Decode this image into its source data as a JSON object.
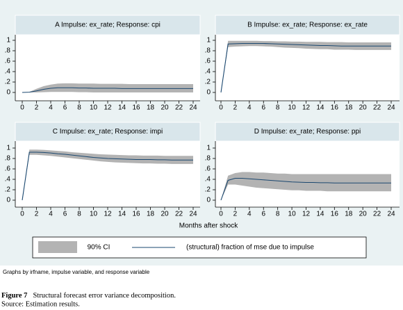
{
  "chart_data": [
    {
      "type": "line",
      "title": "A Impulse: ex_rate; Response: cpi",
      "x": [
        0,
        1,
        2,
        3,
        4,
        5,
        6,
        7,
        8,
        9,
        10,
        11,
        12,
        13,
        14,
        15,
        16,
        17,
        18,
        19,
        20,
        21,
        22,
        23,
        24
      ],
      "xlim": [
        0,
        24
      ],
      "xticks": [
        0,
        2,
        4,
        6,
        8,
        10,
        12,
        14,
        16,
        18,
        20,
        22,
        24
      ],
      "ylim": [
        0,
        1
      ],
      "yticks": [
        0,
        {
          "value": 0.2,
          "label": ".2"
        },
        {
          "value": 0.4,
          "label": ".4"
        },
        {
          "value": 0.6,
          "label": ".6"
        },
        {
          "value": 0.8,
          "label": ".8"
        },
        1
      ],
      "grid": false,
      "series": [
        {
          "name": "90% CI",
          "color": "#b3b3b3",
          "lower": [
            0,
            0,
            0,
            0.005,
            0.01,
            0.01,
            0.01,
            0.01,
            0.005,
            0.005,
            0,
            0,
            0,
            0,
            0,
            0,
            0,
            0,
            0,
            0,
            0,
            0,
            0,
            0,
            0
          ],
          "upper": [
            0,
            0.01,
            0.07,
            0.12,
            0.15,
            0.17,
            0.175,
            0.175,
            0.17,
            0.17,
            0.17,
            0.165,
            0.165,
            0.165,
            0.165,
            0.16,
            0.16,
            0.16,
            0.16,
            0.16,
            0.16,
            0.16,
            0.16,
            0.16,
            0.16
          ]
        },
        {
          "name": "(structural) fraction of mse due to impulse",
          "color": "#1a476f",
          "values": [
            0,
            0.005,
            0.03,
            0.06,
            0.08,
            0.09,
            0.09,
            0.09,
            0.085,
            0.085,
            0.08,
            0.08,
            0.08,
            0.08,
            0.075,
            0.075,
            0.075,
            0.075,
            0.075,
            0.075,
            0.075,
            0.075,
            0.075,
            0.075,
            0.075
          ]
        }
      ]
    },
    {
      "type": "line",
      "title": "B Impulse: ex_rate; Response: ex_rate",
      "x": [
        0,
        1,
        2,
        3,
        4,
        5,
        6,
        7,
        8,
        9,
        10,
        11,
        12,
        13,
        14,
        15,
        16,
        17,
        18,
        19,
        20,
        21,
        22,
        23,
        24
      ],
      "xlim": [
        0,
        24
      ],
      "xticks": [
        0,
        2,
        4,
        6,
        8,
        10,
        12,
        14,
        16,
        18,
        20,
        22,
        24
      ],
      "ylim": [
        0,
        1
      ],
      "yticks": [
        0,
        {
          "value": 0.2,
          "label": ".2"
        },
        {
          "value": 0.4,
          "label": ".4"
        },
        {
          "value": 0.6,
          "label": ".6"
        },
        {
          "value": 0.8,
          "label": ".8"
        },
        1
      ],
      "grid": false,
      "series": [
        {
          "color": "#b3b3b3",
          "lower": [
            0,
            0.87,
            0.88,
            0.885,
            0.89,
            0.89,
            0.885,
            0.88,
            0.87,
            0.86,
            0.855,
            0.85,
            0.84,
            0.835,
            0.83,
            0.83,
            0.82,
            0.82,
            0.82,
            0.815,
            0.815,
            0.815,
            0.815,
            0.815,
            0.815
          ],
          "upper": [
            0,
            0.99,
            0.99,
            0.99,
            0.99,
            0.99,
            0.985,
            0.985,
            0.98,
            0.98,
            0.975,
            0.975,
            0.97,
            0.97,
            0.97,
            0.965,
            0.965,
            0.965,
            0.96,
            0.96,
            0.96,
            0.96,
            0.96,
            0.96,
            0.96
          ]
        },
        {
          "color": "#1a476f",
          "values": [
            0,
            0.93,
            0.935,
            0.94,
            0.94,
            0.94,
            0.94,
            0.935,
            0.93,
            0.925,
            0.92,
            0.915,
            0.91,
            0.905,
            0.9,
            0.9,
            0.895,
            0.89,
            0.89,
            0.89,
            0.89,
            0.89,
            0.89,
            0.89,
            0.89
          ]
        }
      ]
    },
    {
      "type": "line",
      "title": "C Impulse: ex_rate; Response: impi",
      "x": [
        0,
        1,
        2,
        3,
        4,
        5,
        6,
        7,
        8,
        9,
        10,
        11,
        12,
        13,
        14,
        15,
        16,
        17,
        18,
        19,
        20,
        21,
        22,
        23,
        24
      ],
      "xlim": [
        0,
        24
      ],
      "xticks": [
        0,
        2,
        4,
        6,
        8,
        10,
        12,
        14,
        16,
        18,
        20,
        22,
        24
      ],
      "ylim": [
        0,
        1
      ],
      "yticks": [
        0,
        {
          "value": 0.2,
          "label": ".2"
        },
        {
          "value": 0.4,
          "label": ".4"
        },
        {
          "value": 0.6,
          "label": ".6"
        },
        {
          "value": 0.8,
          "label": ".8"
        },
        1
      ],
      "grid": false,
      "series": [
        {
          "color": "#b3b3b3",
          "lower": [
            0,
            0.87,
            0.87,
            0.86,
            0.85,
            0.835,
            0.82,
            0.805,
            0.79,
            0.775,
            0.76,
            0.745,
            0.735,
            0.725,
            0.72,
            0.715,
            0.71,
            0.705,
            0.705,
            0.7,
            0.7,
            0.695,
            0.695,
            0.695,
            0.695
          ],
          "upper": [
            0,
            0.97,
            0.97,
            0.965,
            0.955,
            0.945,
            0.935,
            0.92,
            0.91,
            0.9,
            0.89,
            0.88,
            0.875,
            0.87,
            0.865,
            0.86,
            0.86,
            0.855,
            0.855,
            0.855,
            0.85,
            0.85,
            0.85,
            0.85,
            0.85
          ]
        },
        {
          "color": "#1a476f",
          "values": [
            0,
            0.92,
            0.92,
            0.915,
            0.905,
            0.89,
            0.88,
            0.865,
            0.85,
            0.835,
            0.82,
            0.81,
            0.8,
            0.795,
            0.79,
            0.785,
            0.78,
            0.78,
            0.78,
            0.775,
            0.775,
            0.77,
            0.77,
            0.77,
            0.77
          ]
        }
      ]
    },
    {
      "type": "line",
      "title": "D Impulse: ex_rate; Response: ppi",
      "x": [
        0,
        1,
        2,
        3,
        4,
        5,
        6,
        7,
        8,
        9,
        10,
        11,
        12,
        13,
        14,
        15,
        16,
        17,
        18,
        19,
        20,
        21,
        22,
        23,
        24
      ],
      "xlim": [
        0,
        24
      ],
      "xticks": [
        0,
        2,
        4,
        6,
        8,
        10,
        12,
        14,
        16,
        18,
        20,
        22,
        24
      ],
      "ylim": [
        0,
        1
      ],
      "yticks": [
        0,
        {
          "value": 0.2,
          "label": ".2"
        },
        {
          "value": 0.4,
          "label": ".4"
        },
        {
          "value": 0.6,
          "label": ".6"
        },
        {
          "value": 0.8,
          "label": ".8"
        },
        1
      ],
      "grid": false,
      "series": [
        {
          "color": "#b3b3b3",
          "lower": [
            0,
            0.3,
            0.3,
            0.28,
            0.26,
            0.24,
            0.23,
            0.22,
            0.21,
            0.2,
            0.19,
            0.19,
            0.18,
            0.18,
            0.18,
            0.17,
            0.17,
            0.17,
            0.17,
            0.17,
            0.17,
            0.17,
            0.17,
            0.17,
            0.17
          ],
          "upper": [
            0,
            0.47,
            0.52,
            0.54,
            0.54,
            0.53,
            0.53,
            0.52,
            0.51,
            0.51,
            0.5,
            0.5,
            0.5,
            0.5,
            0.5,
            0.5,
            0.5,
            0.5,
            0.5,
            0.5,
            0.5,
            0.5,
            0.5,
            0.5,
            0.5
          ]
        },
        {
          "color": "#1a476f",
          "values": [
            0,
            0.38,
            0.42,
            0.42,
            0.41,
            0.4,
            0.39,
            0.38,
            0.37,
            0.36,
            0.35,
            0.345,
            0.34,
            0.34,
            0.335,
            0.335,
            0.33,
            0.33,
            0.33,
            0.33,
            0.33,
            0.33,
            0.33,
            0.33,
            0.33
          ]
        }
      ]
    }
  ],
  "x_label": "Months after shock",
  "note": "Graphs by irfname, impulse variable, and response variable",
  "caption": {
    "label": "Figure 7",
    "text": "Structural forecast error variance decomposition.",
    "source": "Source: Estimation results."
  }
}
